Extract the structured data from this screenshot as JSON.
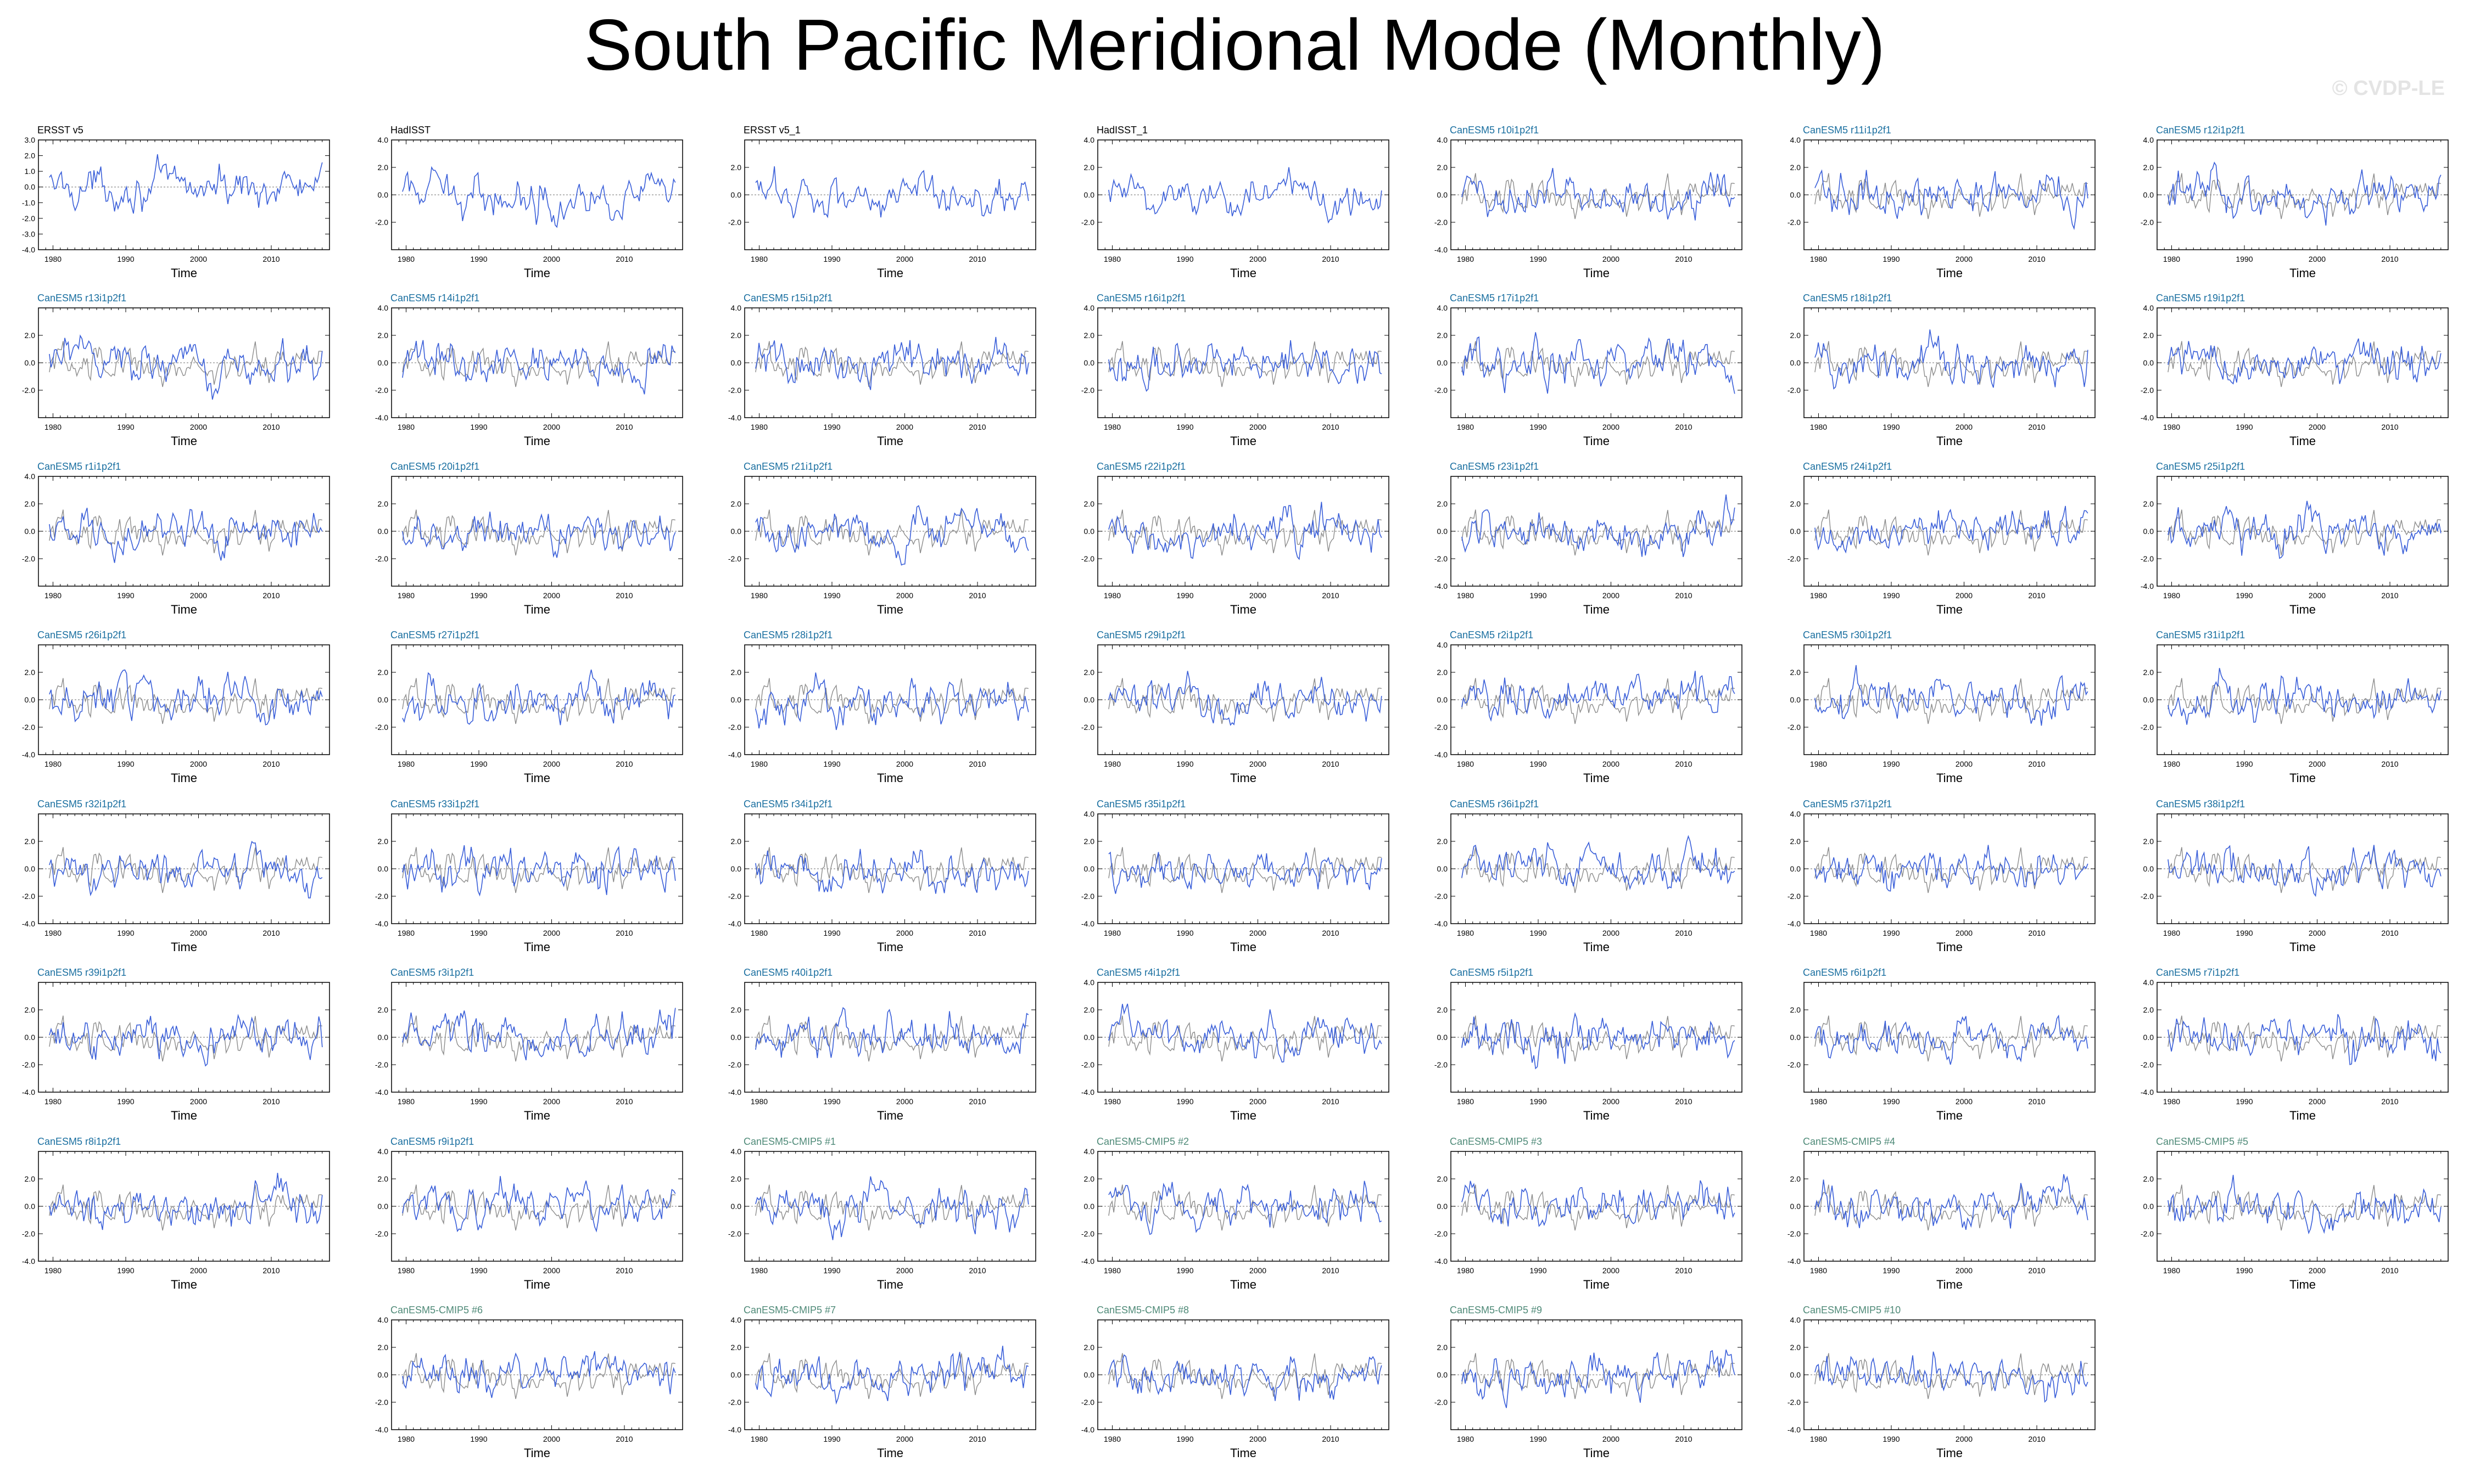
{
  "title": "South Pacific Meridional Mode (Monthly)",
  "watermark": "© CVDP-LE",
  "colors": {
    "obs_title": "#000000",
    "model_title": "#1a6fa0",
    "cmip_title": "#4f8a78",
    "model_line": "#3a5fd9",
    "reference_line": "#8c8c8c",
    "zero_line": "#8c8c8c"
  },
  "shared_axes": {
    "xlabel": "Time",
    "x_ticks": [
      "1980",
      "1990",
      "2000",
      "2010"
    ],
    "xlim": [
      1978,
      2018
    ]
  },
  "panels": [
    {
      "title": "ERSST v5",
      "title_style": "obs",
      "row": 0,
      "col": 0,
      "ylim": [
        -4,
        3
      ],
      "y_ticks": [
        "3.0",
        "2.0",
        "1.0",
        "0.0",
        "-1.0",
        "-2.0",
        "-3.0",
        "-4.0"
      ],
      "has_reference": false
    },
    {
      "title": "HadISST",
      "title_style": "obs",
      "row": 0,
      "col": 1,
      "ylim": [
        -4,
        4
      ],
      "y_ticks": [
        "4.0",
        "2.0",
        "0.0",
        "-2.0"
      ],
      "has_reference": false
    },
    {
      "title": "ERSST v5_1",
      "title_style": "obs",
      "row": 0,
      "col": 2,
      "ylim": [
        -4,
        4
      ],
      "y_ticks": [
        "2.0",
        "0.0",
        "-2.0"
      ],
      "has_reference": false
    },
    {
      "title": "HadISST_1",
      "title_style": "obs",
      "row": 0,
      "col": 3,
      "ylim": [
        -4,
        4
      ],
      "y_ticks": [
        "4.0",
        "2.0",
        "0.0",
        "-2.0"
      ],
      "has_reference": false
    },
    {
      "title": "CanESM5 r10i1p2f1",
      "title_style": "model",
      "row": 0,
      "col": 4,
      "ylim": [
        -4,
        4
      ],
      "y_ticks": [
        "4.0",
        "2.0",
        "0.0",
        "-2.0",
        "-4.0"
      ],
      "has_reference": true
    },
    {
      "title": "CanESM5 r11i1p2f1",
      "title_style": "model",
      "row": 0,
      "col": 5,
      "ylim": [
        -4,
        4
      ],
      "y_ticks": [
        "4.0",
        "2.0",
        "0.0",
        "-2.0"
      ],
      "has_reference": true
    },
    {
      "title": "CanESM5 r12i1p2f1",
      "title_style": "model",
      "row": 0,
      "col": 6,
      "ylim": [
        -4,
        4
      ],
      "y_ticks": [
        "4.0",
        "2.0",
        "0.0",
        "-2.0"
      ],
      "has_reference": true
    },
    {
      "title": "CanESM5 r13i1p2f1",
      "title_style": "model",
      "row": 1,
      "col": 0,
      "ylim": [
        -4,
        4
      ],
      "y_ticks": [
        "2.0",
        "0.0",
        "-2.0"
      ],
      "has_reference": true
    },
    {
      "title": "CanESM5 r14i1p2f1",
      "title_style": "model",
      "row": 1,
      "col": 1,
      "ylim": [
        -4,
        4
      ],
      "y_ticks": [
        "4.0",
        "2.0",
        "0.0",
        "-2.0",
        "-4.0"
      ],
      "has_reference": true
    },
    {
      "title": "CanESM5 r15i1p2f1",
      "title_style": "model",
      "row": 1,
      "col": 2,
      "ylim": [
        -4,
        4
      ],
      "y_ticks": [
        "4.0",
        "2.0",
        "0.0",
        "-2.0",
        "-4.0"
      ],
      "has_reference": true
    },
    {
      "title": "CanESM5 r16i1p2f1",
      "title_style": "model",
      "row": 1,
      "col": 3,
      "ylim": [
        -4,
        4
      ],
      "y_ticks": [
        "4.0",
        "2.0",
        "0.0",
        "-2.0"
      ],
      "has_reference": true
    },
    {
      "title": "CanESM5 r17i1p2f1",
      "title_style": "model",
      "row": 1,
      "col": 4,
      "ylim": [
        -4,
        4
      ],
      "y_ticks": [
        "4.0",
        "2.0",
        "0.0",
        "-2.0"
      ],
      "has_reference": true
    },
    {
      "title": "CanESM5 r18i1p2f1",
      "title_style": "model",
      "row": 1,
      "col": 5,
      "ylim": [
        -4,
        4
      ],
      "y_ticks": [
        "2.0",
        "0.0",
        "-2.0"
      ],
      "has_reference": true
    },
    {
      "title": "CanESM5 r19i1p2f1",
      "title_style": "model",
      "row": 1,
      "col": 6,
      "ylim": [
        -4,
        4
      ],
      "y_ticks": [
        "4.0",
        "2.0",
        "0.0",
        "-2.0",
        "-4.0"
      ],
      "has_reference": true
    },
    {
      "title": "CanESM5 r1i1p2f1",
      "title_style": "model",
      "row": 2,
      "col": 0,
      "ylim": [
        -4,
        4
      ],
      "y_ticks": [
        "4.0",
        "2.0",
        "0.0",
        "-2.0"
      ],
      "has_reference": true
    },
    {
      "title": "CanESM5 r20i1p2f1",
      "title_style": "model",
      "row": 2,
      "col": 1,
      "ylim": [
        -4,
        4
      ],
      "y_ticks": [
        "2.0",
        "0.0",
        "-2.0"
      ],
      "has_reference": true
    },
    {
      "title": "CanESM5 r21i1p2f1",
      "title_style": "model",
      "row": 2,
      "col": 2,
      "ylim": [
        -4,
        4
      ],
      "y_ticks": [
        "2.0",
        "0.0",
        "-2.0"
      ],
      "has_reference": true
    },
    {
      "title": "CanESM5 r22i1p2f1",
      "title_style": "model",
      "row": 2,
      "col": 3,
      "ylim": [
        -4,
        4
      ],
      "y_ticks": [
        "2.0",
        "0.0",
        "-2.0"
      ],
      "has_reference": true
    },
    {
      "title": "CanESM5 r23i1p2f1",
      "title_style": "model",
      "row": 2,
      "col": 4,
      "ylim": [
        -4,
        4
      ],
      "y_ticks": [
        "2.0",
        "0.0",
        "-2.0",
        "-4.0"
      ],
      "has_reference": true
    },
    {
      "title": "CanESM5 r24i1p2f1",
      "title_style": "model",
      "row": 2,
      "col": 5,
      "ylim": [
        -4,
        4
      ],
      "y_ticks": [
        "2.0",
        "0.0",
        "-2.0"
      ],
      "has_reference": true
    },
    {
      "title": "CanESM5 r25i1p2f1",
      "title_style": "model",
      "row": 2,
      "col": 6,
      "ylim": [
        -4,
        4
      ],
      "y_ticks": [
        "2.0",
        "0.0",
        "-2.0",
        "-4.0"
      ],
      "has_reference": true
    },
    {
      "title": "CanESM5 r26i1p2f1",
      "title_style": "model",
      "row": 3,
      "col": 0,
      "ylim": [
        -4,
        4
      ],
      "y_ticks": [
        "2.0",
        "0.0",
        "-2.0",
        "-4.0"
      ],
      "has_reference": true
    },
    {
      "title": "CanESM5 r27i1p2f1",
      "title_style": "model",
      "row": 3,
      "col": 1,
      "ylim": [
        -4,
        4
      ],
      "y_ticks": [
        "2.0",
        "0.0",
        "-2.0"
      ],
      "has_reference": true
    },
    {
      "title": "CanESM5 r28i1p2f1",
      "title_style": "model",
      "row": 3,
      "col": 2,
      "ylim": [
        -4,
        4
      ],
      "y_ticks": [
        "2.0",
        "0.0",
        "-2.0",
        "-4.0"
      ],
      "has_reference": true
    },
    {
      "title": "CanESM5 r29i1p2f1",
      "title_style": "model",
      "row": 3,
      "col": 3,
      "ylim": [
        -4,
        4
      ],
      "y_ticks": [
        "2.0",
        "0.0",
        "-2.0"
      ],
      "has_reference": true
    },
    {
      "title": "CanESM5 r2i1p2f1",
      "title_style": "model",
      "row": 3,
      "col": 4,
      "ylim": [
        -4,
        4
      ],
      "y_ticks": [
        "4.0",
        "2.0",
        "0.0",
        "-2.0",
        "-4.0"
      ],
      "has_reference": true
    },
    {
      "title": "CanESM5 r30i1p2f1",
      "title_style": "model",
      "row": 3,
      "col": 5,
      "ylim": [
        -4,
        4
      ],
      "y_ticks": [
        "2.0",
        "0.0",
        "-2.0"
      ],
      "has_reference": true
    },
    {
      "title": "CanESM5 r31i1p2f1",
      "title_style": "model",
      "row": 3,
      "col": 6,
      "ylim": [
        -4,
        4
      ],
      "y_ticks": [
        "2.0",
        "0.0",
        "-2.0"
      ],
      "has_reference": true
    },
    {
      "title": "CanESM5 r32i1p2f1",
      "title_style": "model",
      "row": 4,
      "col": 0,
      "ylim": [
        -4,
        4
      ],
      "y_ticks": [
        "2.0",
        "0.0",
        "-2.0",
        "-4.0"
      ],
      "has_reference": true
    },
    {
      "title": "CanESM5 r33i1p2f1",
      "title_style": "model",
      "row": 4,
      "col": 1,
      "ylim": [
        -4,
        4
      ],
      "y_ticks": [
        "2.0",
        "0.0",
        "-2.0",
        "-4.0"
      ],
      "has_reference": true
    },
    {
      "title": "CanESM5 r34i1p2f1",
      "title_style": "model",
      "row": 4,
      "col": 2,
      "ylim": [
        -4,
        4
      ],
      "y_ticks": [
        "2.0",
        "0.0",
        "-2.0",
        "-4.0"
      ],
      "has_reference": true
    },
    {
      "title": "CanESM5 r35i1p2f1",
      "title_style": "model",
      "row": 4,
      "col": 3,
      "ylim": [
        -4,
        4
      ],
      "y_ticks": [
        "4.0",
        "2.0",
        "0.0",
        "-2.0",
        "-4.0"
      ],
      "has_reference": true
    },
    {
      "title": "CanESM5 r36i1p2f1",
      "title_style": "model",
      "row": 4,
      "col": 4,
      "ylim": [
        -4,
        4
      ],
      "y_ticks": [
        "2.0",
        "0.0",
        "-2.0",
        "-4.0"
      ],
      "has_reference": true
    },
    {
      "title": "CanESM5 r37i1p2f1",
      "title_style": "model",
      "row": 4,
      "col": 5,
      "ylim": [
        -4,
        4
      ],
      "y_ticks": [
        "4.0",
        "2.0",
        "0.0",
        "-2.0",
        "-4.0"
      ],
      "has_reference": true
    },
    {
      "title": "CanESM5 r38i1p2f1",
      "title_style": "model",
      "row": 4,
      "col": 6,
      "ylim": [
        -4,
        4
      ],
      "y_ticks": [
        "2.0",
        "0.0",
        "-2.0"
      ],
      "has_reference": true
    },
    {
      "title": "CanESM5 r39i1p2f1",
      "title_style": "model",
      "row": 5,
      "col": 0,
      "ylim": [
        -4,
        4
      ],
      "y_ticks": [
        "2.0",
        "0.0",
        "-2.0",
        "-4.0"
      ],
      "has_reference": true
    },
    {
      "title": "CanESM5 r3i1p2f1",
      "title_style": "model",
      "row": 5,
      "col": 1,
      "ylim": [
        -4,
        4
      ],
      "y_ticks": [
        "2.0",
        "0.0",
        "-2.0",
        "-4.0"
      ],
      "has_reference": true
    },
    {
      "title": "CanESM5 r40i1p2f1",
      "title_style": "model",
      "row": 5,
      "col": 2,
      "ylim": [
        -4,
        4
      ],
      "y_ticks": [
        "2.0",
        "0.0",
        "-2.0",
        "-4.0"
      ],
      "has_reference": true
    },
    {
      "title": "CanESM5 r4i1p2f1",
      "title_style": "model",
      "row": 5,
      "col": 3,
      "ylim": [
        -4,
        4
      ],
      "y_ticks": [
        "4.0",
        "2.0",
        "0.0",
        "-2.0",
        "-4.0"
      ],
      "has_reference": true
    },
    {
      "title": "CanESM5 r5i1p2f1",
      "title_style": "model",
      "row": 5,
      "col": 4,
      "ylim": [
        -4,
        4
      ],
      "y_ticks": [
        "2.0",
        "0.0",
        "-2.0"
      ],
      "has_reference": true
    },
    {
      "title": "CanESM5 r6i1p2f1",
      "title_style": "model",
      "row": 5,
      "col": 5,
      "ylim": [
        -4,
        4
      ],
      "y_ticks": [
        "2.0",
        "0.0",
        "-2.0"
      ],
      "has_reference": true
    },
    {
      "title": "CanESM5 r7i1p2f1",
      "title_style": "model",
      "row": 5,
      "col": 6,
      "ylim": [
        -4,
        4
      ],
      "y_ticks": [
        "4.0",
        "2.0",
        "0.0",
        "-2.0",
        "-4.0"
      ],
      "has_reference": true
    },
    {
      "title": "CanESM5 r8i1p2f1",
      "title_style": "model",
      "row": 6,
      "col": 0,
      "ylim": [
        -4,
        4
      ],
      "y_ticks": [
        "2.0",
        "0.0",
        "-2.0",
        "-4.0"
      ],
      "has_reference": true
    },
    {
      "title": "CanESM5 r9i1p2f1",
      "title_style": "model",
      "row": 6,
      "col": 1,
      "ylim": [
        -4,
        4
      ],
      "y_ticks": [
        "4.0",
        "2.0",
        "0.0",
        "-2.0"
      ],
      "has_reference": true
    },
    {
      "title": "CanESM5-CMIP5 #1",
      "title_style": "cmip",
      "row": 6,
      "col": 2,
      "ylim": [
        -4,
        4
      ],
      "y_ticks": [
        "4.0",
        "2.0",
        "0.0",
        "-2.0"
      ],
      "has_reference": true
    },
    {
      "title": "CanESM5-CMIP5 #2",
      "title_style": "cmip",
      "row": 6,
      "col": 3,
      "ylim": [
        -4,
        4
      ],
      "y_ticks": [
        "4.0",
        "2.0",
        "0.0",
        "-2.0",
        "-4.0"
      ],
      "has_reference": true
    },
    {
      "title": "CanESM5-CMIP5 #3",
      "title_style": "cmip",
      "row": 6,
      "col": 4,
      "ylim": [
        -4,
        4
      ],
      "y_ticks": [
        "2.0",
        "0.0",
        "-2.0",
        "-4.0"
      ],
      "has_reference": true
    },
    {
      "title": "CanESM5-CMIP5 #4",
      "title_style": "cmip",
      "row": 6,
      "col": 5,
      "ylim": [
        -4,
        4
      ],
      "y_ticks": [
        "2.0",
        "0.0",
        "-2.0",
        "-4.0"
      ],
      "has_reference": true
    },
    {
      "title": "CanESM5-CMIP5 #5",
      "title_style": "cmip",
      "row": 6,
      "col": 6,
      "ylim": [
        -4,
        4
      ],
      "y_ticks": [
        "2.0",
        "0.0",
        "-2.0"
      ],
      "has_reference": true
    },
    {
      "title": "CanESM5-CMIP5 #6",
      "title_style": "cmip",
      "row": 7,
      "col": 1,
      "ylim": [
        -4,
        4
      ],
      "y_ticks": [
        "4.0",
        "2.0",
        "0.0",
        "-2.0",
        "-4.0"
      ],
      "has_reference": true
    },
    {
      "title": "CanESM5-CMIP5 #7",
      "title_style": "cmip",
      "row": 7,
      "col": 2,
      "ylim": [
        -4,
        4
      ],
      "y_ticks": [
        "4.0",
        "2.0",
        "0.0",
        "-2.0",
        "-4.0"
      ],
      "has_reference": true
    },
    {
      "title": "CanESM5-CMIP5 #8",
      "title_style": "cmip",
      "row": 7,
      "col": 3,
      "ylim": [
        -4,
        4
      ],
      "y_ticks": [
        "2.0",
        "0.0",
        "-2.0",
        "-4.0"
      ],
      "has_reference": true
    },
    {
      "title": "CanESM5-CMIP5 #9",
      "title_style": "cmip",
      "row": 7,
      "col": 4,
      "ylim": [
        -4,
        4
      ],
      "y_ticks": [
        "2.0",
        "0.0",
        "-2.0"
      ],
      "has_reference": true
    },
    {
      "title": "CanESM5-CMIP5 #10",
      "title_style": "cmip",
      "row": 7,
      "col": 5,
      "ylim": [
        -4,
        4
      ],
      "y_ticks": [
        "4.0",
        "2.0",
        "0.0",
        "-2.0",
        "-4.0"
      ],
      "has_reference": true
    }
  ],
  "chart_data": {
    "type": "line",
    "title": "South Pacific Meridional Mode (Monthly)",
    "xlabel": "Time",
    "ylabel": "",
    "x_ticks": [
      1980,
      1990,
      2000,
      2010
    ],
    "xlim": [
      1978,
      2018
    ],
    "ylim": [
      -4,
      4
    ],
    "grid": false,
    "legend": "none",
    "note_series": "Each panel shows a monthly index time series (blue) with the observed ERSST v5 series overlaid (gray) in model panels; a gray dotted zero line is drawn in each panel.",
    "panel_count": 54
  }
}
